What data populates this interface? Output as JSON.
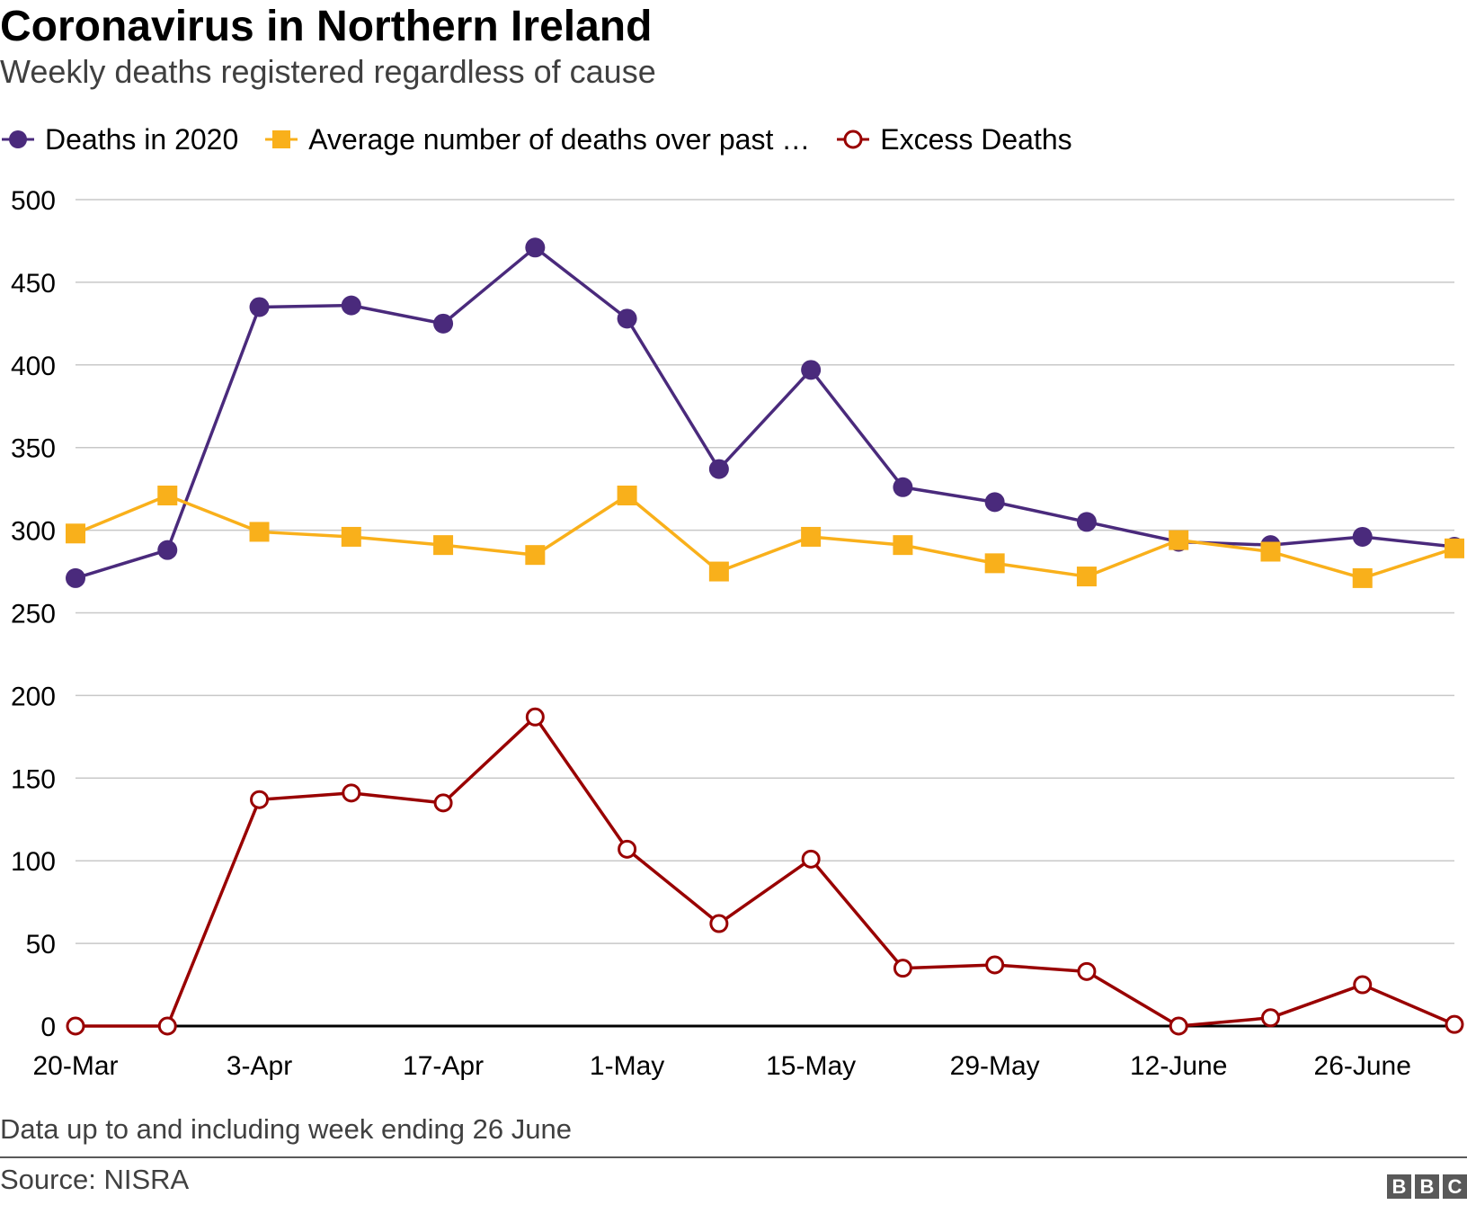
{
  "title": "Coronavirus in Northern Ireland",
  "subtitle": "Weekly deaths registered regardless of cause",
  "legend": {
    "items": [
      {
        "label": "Deaths in 2020",
        "marker": "filled-circle",
        "color": "#4a2a7c"
      },
      {
        "label": "Average number of deaths over past …",
        "marker": "square",
        "color": "#f9b01b"
      },
      {
        "label": "Excess Deaths",
        "marker": "hollow-circle",
        "color": "#990000"
      }
    ]
  },
  "note": "Data up to and including week ending 26 June",
  "source": "Source: NISRA",
  "logo": [
    "B",
    "B",
    "C"
  ],
  "chart_data": {
    "type": "line",
    "x": [
      "20-Mar",
      "27-Mar",
      "3-Apr",
      "10-Apr",
      "17-Apr",
      "24-Apr",
      "1-May",
      "8-May",
      "15-May",
      "22-May",
      "29-May",
      "5-June",
      "12-June",
      "19-June",
      "26-June",
      "3-July"
    ],
    "x_tick_labels": [
      "20-Mar",
      "3-Apr",
      "17-Apr",
      "1-May",
      "15-May",
      "29-May",
      "12-June",
      "26-June"
    ],
    "y_tick_labels": [
      "0",
      "50",
      "100",
      "150",
      "200",
      "250",
      "300",
      "350",
      "400",
      "450",
      "500"
    ],
    "ylim": [
      0,
      500
    ],
    "grid": true,
    "legend_position": "top",
    "series": [
      {
        "name": "Deaths in 2020",
        "color": "#4a2a7c",
        "marker": "filled-circle",
        "values": [
          271,
          288,
          435,
          436,
          425,
          471,
          428,
          337,
          397,
          326,
          317,
          305,
          293,
          291,
          296,
          290
        ]
      },
      {
        "name": "Average number of deaths over past …",
        "color": "#f9b01b",
        "marker": "square",
        "values": [
          298,
          321,
          299,
          296,
          291,
          285,
          321,
          275,
          296,
          291,
          280,
          272,
          294,
          287,
          271,
          289
        ]
      },
      {
        "name": "Excess Deaths",
        "color": "#990000",
        "marker": "hollow-circle",
        "values": [
          0,
          0,
          137,
          141,
          135,
          187,
          107,
          62,
          101,
          35,
          37,
          33,
          0,
          5,
          25,
          1
        ]
      }
    ]
  }
}
